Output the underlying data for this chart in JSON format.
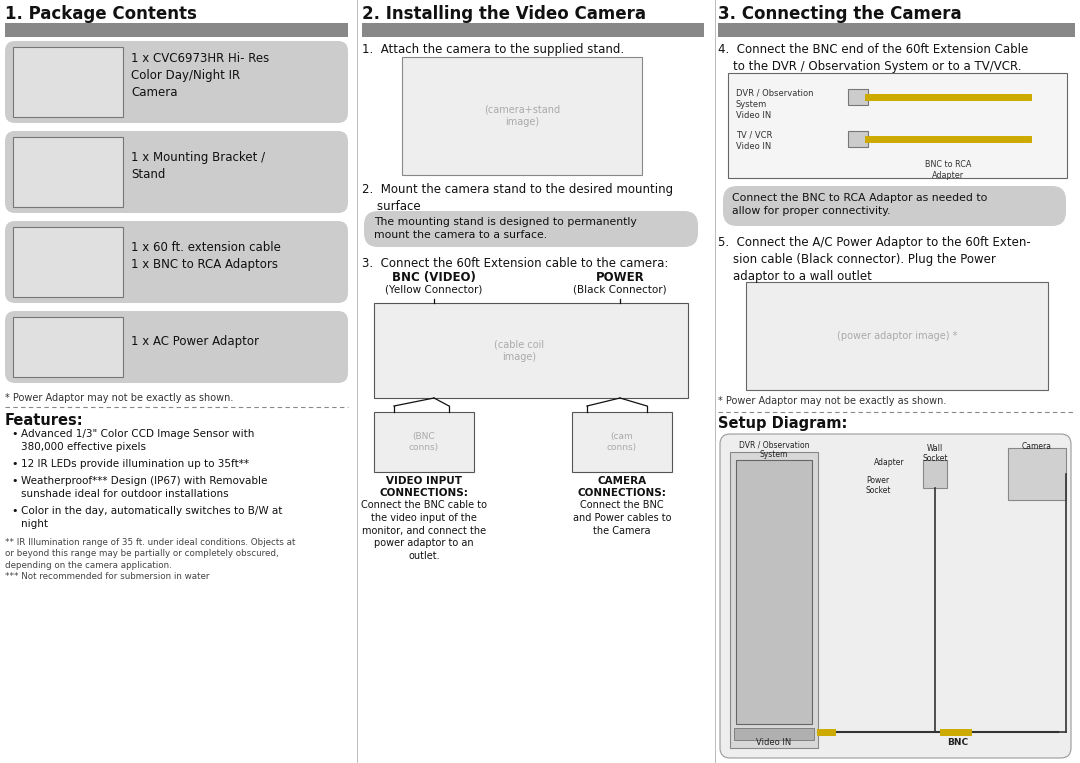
{
  "bg_color": "#ffffff",
  "header_bar_color": "#888888",
  "section_bg_color": "#cccccc",
  "note_bg_color": "#cccccc",
  "col1_title": "1. Package Contents",
  "col2_title": "2. Installing the Video Camera",
  "col3_title": "3. Connecting the Camera",
  "pkg_items": [
    "1 x CVC6973HR Hi- Res\nColor Day/Night IR\nCamera",
    "1 x Mounting Bracket /\nStand",
    "1 x 60 ft. extension cable\n1 x BNC to RCA Adaptors",
    "1 x AC Power Adaptor"
  ],
  "pkg_note": "* Power Adaptor may not be exactly as shown.",
  "features_title": "Features:",
  "features_bullets": [
    "Advanced 1/3\" Color CCD Image Sensor with\n380,000 effective pixels",
    "12 IR LEDs provide illumination up to 35ft**",
    "Weatherproof*** Design (IP67) with Removable\nsunshade ideal for outdoor installations",
    "Color in the day, automatically switches to B/W at\nnight"
  ],
  "features_footnotes": "** IR Illumination range of 35 ft. under ideal conditions. Objects at\nor beyond this range may be partially or completely obscured,\ndepending on the camera application.\n*** Not recommended for submersion in water",
  "install_step1": "1.  Attach the camera to the supplied stand.",
  "install_step2": "2.  Mount the camera stand to the desired mounting\n    surface",
  "install_step3": "3.  Connect the 60ft Extension cable to the camera:",
  "install_note": "The mounting stand is designed to permanently\nmount the camera to a surface.",
  "bnc_label": "BNC (VIDEO)",
  "bnc_sub": "(Yellow Connector)",
  "power_label": "POWER",
  "power_sub": "(Black Connector)",
  "video_input_title": "VIDEO INPUT\nCONNECTIONS:",
  "video_input_desc": "Connect the BNC cable to\nthe video input of the\nmonitor, and connect the\npower adaptor to an\noutlet.",
  "camera_conn_title": "CAMERA\nCONNECTIONS:",
  "camera_conn_desc": "Connect the BNC\nand Power cables to\nthe Camera",
  "connect_step4": "4.  Connect the BNC end of the 60ft Extension Cable\n    to the DVR / Observation System or to a TV/VCR.",
  "connect_note": "Connect the BNC to RCA Adaptor as needed to\nallow for proper connectivity.",
  "connect_step5": "5.  Connect the A/C Power Adaptor to the 60ft Exten-\n    sion cable (Black connector). Plug the Power\n    adaptor to a wall outlet",
  "connect_pwr_note": "* Power Adaptor may not be exactly as shown.",
  "setup_title": "Setup Diagram:",
  "dvr_sys_label": "DVR / Observation\nSystem",
  "wall_socket_label": "Wall\nSocket",
  "camera_label": "Camera",
  "adapter_label": "Adapter",
  "power_socket_label": "Power\nSocket",
  "video_in_label": "Video IN",
  "bnc_label2": "BNC"
}
